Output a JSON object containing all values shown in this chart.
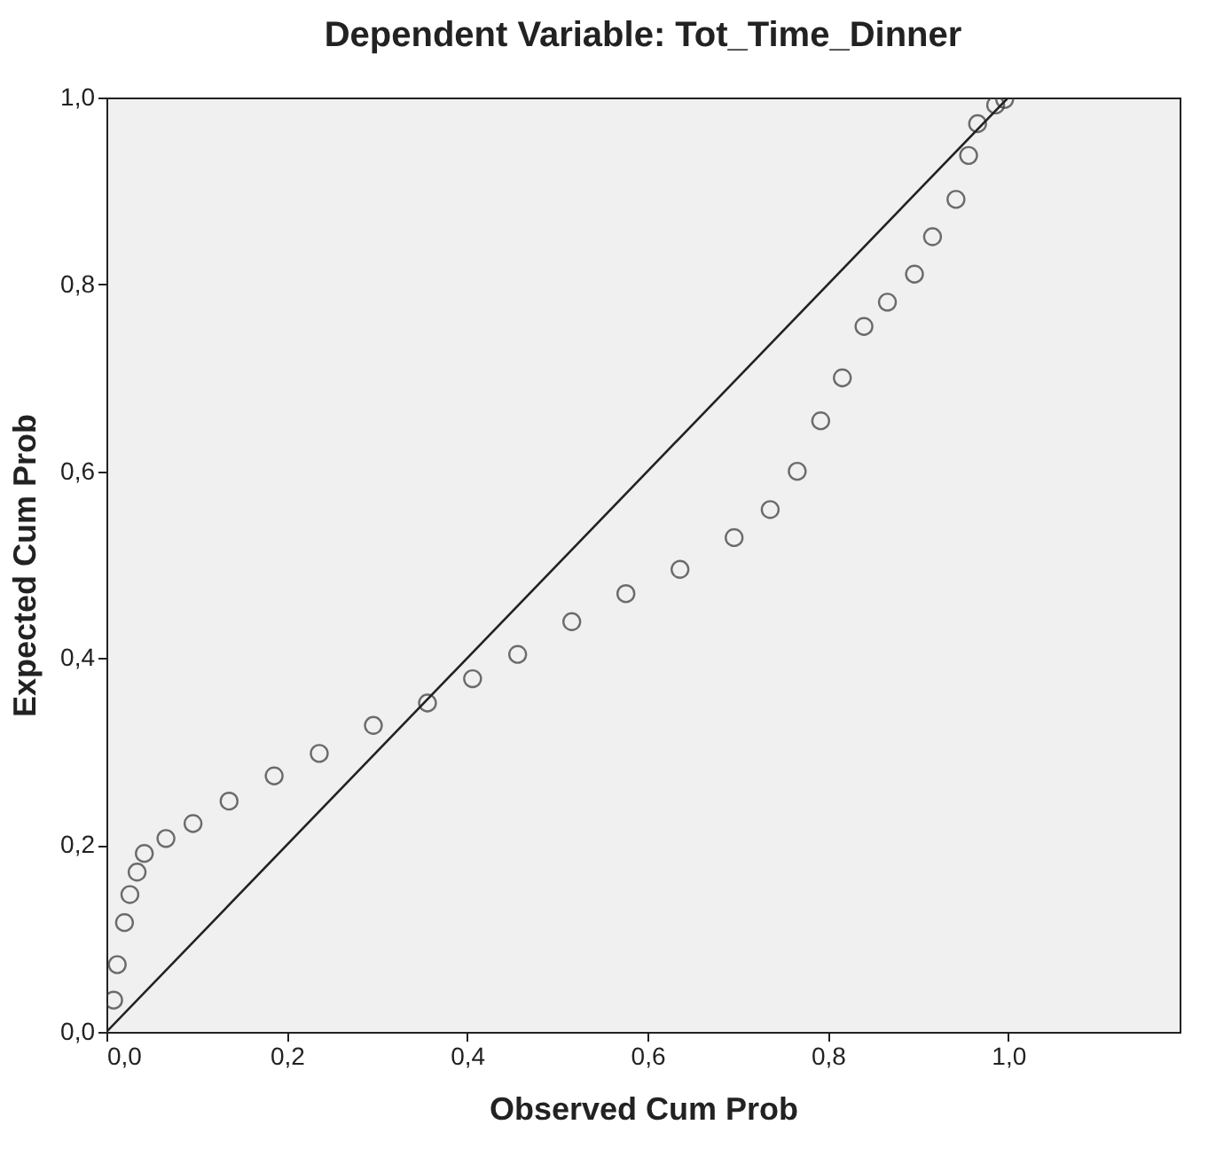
{
  "chart_data": {
    "type": "scatter",
    "title": "Dependent Variable: Tot_Time_Dinner",
    "xlabel": "Observed Cum Prob",
    "ylabel": "Expected Cum Prob",
    "x": [
      0.008,
      0.012,
      0.02,
      0.026,
      0.034,
      0.042,
      0.066,
      0.096,
      0.136,
      0.186,
      0.236,
      0.296,
      0.356,
      0.406,
      0.456,
      0.516,
      0.576,
      0.636,
      0.696,
      0.736,
      0.766,
      0.792,
      0.816,
      0.84,
      0.866,
      0.896,
      0.916,
      0.942,
      0.956,
      0.966,
      0.986,
      0.996
    ],
    "series": [
      {
        "color": "#333333",
        "marker": "circle",
        "values": [
          0.034,
          0.072,
          0.117,
          0.147,
          0.171,
          0.191,
          0.207,
          0.223,
          0.247,
          0.274,
          0.298,
          0.328,
          0.352,
          0.378,
          0.404,
          0.439,
          0.469,
          0.495,
          0.529,
          0.559,
          0.6,
          0.654,
          0.7,
          0.755,
          0.781,
          0.811,
          0.851,
          0.891,
          0.938,
          0.972,
          0.992,
          0.998
        ]
      },
      {
        "type": "line",
        "color": "#222222",
        "line_style": "solid",
        "x": [
          0,
          1
        ],
        "values": [
          0,
          1
        ]
      }
    ],
    "xlim": [
      0,
      1.19
    ],
    "ylim": [
      0,
      1
    ],
    "xticks": [
      {
        "value": 0,
        "label": "0,0"
      },
      {
        "value": 0.2,
        "label": "0,2"
      },
      {
        "value": 0.4,
        "label": "0,4"
      },
      {
        "value": 0.6,
        "label": "0,6"
      },
      {
        "value": 0.8,
        "label": "0,8"
      },
      {
        "value": 1.0,
        "label": "1,0"
      }
    ],
    "yticks": [
      {
        "value": 0,
        "label": "0,0"
      },
      {
        "value": 0.2,
        "label": "0,2"
      },
      {
        "value": 0.4,
        "label": "0,4"
      },
      {
        "value": 0.6,
        "label": "0,6"
      },
      {
        "value": 0.8,
        "label": "0,8"
      },
      {
        "value": 1.0,
        "label": "1,0"
      }
    ],
    "grid": false
  }
}
